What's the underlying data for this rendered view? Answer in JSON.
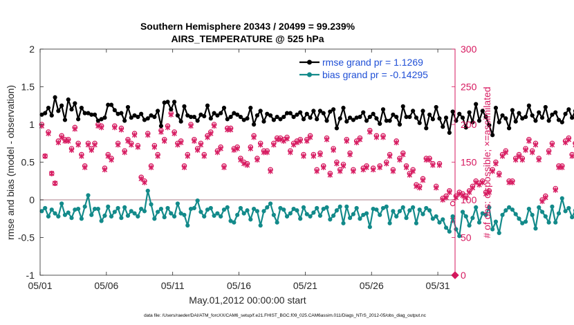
{
  "chart_data": {
    "type": "line",
    "title": "Southern Hemisphere 20343 / 20499 = 99.239%",
    "subtitle": "AIRS_TEMPERATURE @ 525 hPa",
    "xlabel": "May.01,2012 00:00:00 start",
    "ylabel_left": "rmse and bias (model - observation)",
    "ylabel_right": "# of obs: o=possible; ×=assimilated",
    "footnote": "data file: /Users/raeder/DAI/ATM_forcXX/CAM6_setup/f.e21.FHIST_BGC.f09_025.CAM6assim.011/Diags_NTrS_2012-05/obs_diag_output.nc",
    "xlim": [
      0,
      31.3
    ],
    "x_ticks": [
      0,
      5,
      10,
      15,
      20,
      25,
      30
    ],
    "x_tick_labels": [
      "05/01",
      "05/06",
      "05/11",
      "05/16",
      "05/21",
      "05/26",
      "05/31"
    ],
    "ylim_left": [
      -1,
      2
    ],
    "y_ticks_left": [
      -1,
      -0.5,
      0,
      0.5,
      1,
      1.5,
      2
    ],
    "y_tick_labels_left": [
      "-1",
      "-0.5",
      "0",
      "0.5",
      "1",
      "1.5",
      "2"
    ],
    "ylim_right": [
      0,
      300
    ],
    "y_ticks_right": [
      0,
      50,
      100,
      150,
      200,
      250,
      300
    ],
    "y_tick_labels_right": [
      "0",
      "50",
      "100",
      "150",
      "200",
      "250",
      "300"
    ],
    "legend_position": "top-right",
    "colors": {
      "rmse": "#000000",
      "bias": "#138a8a",
      "obs": "#d6175e",
      "legend_text": "#1f4fd6",
      "right_axis": "#d6175e",
      "zero_line": "#c8a8b0"
    },
    "interval_days": 0.25,
    "series": [
      {
        "name": "rmse grand pr = 1.1269",
        "axis": "left",
        "values": [
          1.13,
          1.15,
          1.22,
          1.12,
          1.36,
          1.18,
          1.25,
          1.06,
          1.33,
          1.2,
          1.28,
          1.07,
          1.22,
          1.15,
          1.15,
          1.13,
          1.13,
          1.05,
          1.07,
          1.09,
          1.26,
          1.26,
          1.19,
          1.14,
          1.15,
          1.05,
          1.23,
          1.09,
          1.12,
          1.1,
          1.14,
          1.06,
          1.08,
          1.12,
          1.1,
          1.18,
          0.98,
          1.29,
          1.3,
          1.2,
          1.3,
          1.12,
          1.04,
          1.24,
          1.12,
          1.1,
          1.1,
          1.05,
          1.13,
          1.11,
          1.25,
          1.08,
          1.15,
          1.12,
          1.15,
          1.22,
          1.07,
          1.1,
          1.15,
          1.13,
          1.1,
          1.06,
          1.08,
          1.22,
          1.0,
          1.12,
          1.18,
          1.04,
          1.14,
          1.12,
          1.06,
          1.1,
          1.07,
          1.1,
          1.15,
          1.15,
          1.1,
          1.13,
          1.16,
          1.07,
          1.14,
          1.09,
          1.18,
          1.07,
          1.18,
          1.15,
          1.05,
          1.17,
          1.2,
          0.95,
          1.08,
          1.22,
          1.04,
          1.09,
          1.06,
          1.09,
          1.1,
          1.16,
          1.05,
          1.1,
          1.14,
          1.08,
          1.01,
          1.2,
          1.05,
          1.05,
          1.13,
          1.1,
          1.0,
          1.24,
          1.1,
          1.1,
          1.18,
          1.09,
          1.02,
          1.18,
          0.95,
          1.13,
          1.07,
          1.23,
          1.08,
          0.97,
          1.09,
          0.89,
          1.17,
          1.05,
          1.14,
          1.09,
          0.96,
          1.16,
          1.03,
          1.27,
          1.05,
          1.18,
          1.1,
          0.99,
          0.86,
          1.22,
          1.03,
          1.12,
          1.08,
          0.95,
          1.19,
          1.04,
          1.15,
          1.08,
          1.1,
          1.25,
          1.12,
          1.05,
          1.16,
          1.09,
          1.23,
          1.05,
          1.13,
          1.16,
          1.06,
          1.03,
          1.14,
          1.2,
          1.09,
          1.18,
          1.05,
          1.13,
          1.13,
          1.05,
          1.14,
          1.09,
          1.2,
          1.05,
          1.17,
          1.1,
          1.01,
          1.18,
          0.97,
          1.1,
          1.09,
          1.03,
          1.06,
          1.03,
          1.15,
          1.19,
          1.17,
          1.03
        ]
      },
      {
        "name": "bias grand pr = -0.14295",
        "axis": "left",
        "values": [
          -0.15,
          -0.11,
          -0.22,
          -0.13,
          -0.18,
          -0.22,
          -0.05,
          -0.2,
          -0.17,
          -0.24,
          -0.13,
          -0.12,
          -0.25,
          -0.09,
          0.06,
          -0.2,
          -0.12,
          -0.12,
          -0.28,
          -0.21,
          -0.09,
          -0.22,
          -0.16,
          -0.11,
          -0.24,
          -0.1,
          -0.21,
          -0.15,
          -0.18,
          -0.22,
          -0.12,
          -0.15,
          0.12,
          -0.06,
          -0.25,
          -0.16,
          -0.12,
          -0.23,
          -0.11,
          -0.18,
          -0.22,
          -0.05,
          -0.18,
          -0.2,
          -0.34,
          -0.12,
          -0.11,
          -0.01,
          -0.16,
          -0.22,
          -0.13,
          -0.11,
          -0.21,
          -0.18,
          -0.22,
          -0.13,
          -0.1,
          -0.28,
          -0.3,
          -0.2,
          -0.11,
          -0.18,
          -0.14,
          -0.26,
          -0.12,
          -0.15,
          -0.34,
          -0.15,
          -0.1,
          -0.05,
          -0.2,
          -0.3,
          -0.11,
          -0.13,
          -0.22,
          -0.18,
          -0.12,
          -0.14,
          -0.25,
          -0.1,
          -0.19,
          -0.22,
          -0.17,
          -0.11,
          -0.21,
          -0.12,
          -0.1,
          -0.26,
          -0.21,
          -0.14,
          -0.09,
          -0.31,
          -0.09,
          -0.24,
          -0.19,
          -0.11,
          -0.25,
          -0.2,
          -0.18,
          -0.36,
          -0.12,
          -0.13,
          -0.2,
          -0.11,
          -0.09,
          -0.31,
          -0.15,
          -0.22,
          -0.15,
          -0.1,
          -0.24,
          -0.14,
          -0.1,
          -0.31,
          -0.13,
          -0.19,
          -0.11,
          -0.14,
          -0.25,
          -0.22,
          -0.3,
          -0.26,
          -0.37,
          -0.42,
          -0.22,
          -0.39,
          -0.48,
          -0.16,
          -0.22,
          -0.34,
          -0.24,
          -0.1,
          -0.3,
          -0.18,
          -0.2,
          -0.1,
          -0.39,
          -0.29,
          -0.44,
          -0.2,
          -0.14,
          -0.1,
          -0.13,
          -0.19,
          -0.25,
          -0.31,
          -0.29,
          -0.12,
          -0.2,
          -0.38,
          -0.1,
          -0.16,
          -0.22,
          -0.3,
          -0.09,
          -0.3,
          -0.18,
          0.02,
          -0.15,
          -0.11,
          -0.23,
          -0.14,
          -0.27,
          -0.2,
          -0.17,
          -0.05,
          -0.18,
          -0.31,
          -0.27,
          -0.14,
          -0.26,
          -0.05,
          -0.22,
          -0.15,
          -0.26,
          -0.17,
          -0.1,
          -0.24,
          -0.33,
          -0.27,
          -0.1,
          -0.23,
          -0.18,
          -0.04,
          -0.11,
          -0.13,
          -0.26,
          -0.16,
          -0.4,
          -0.16,
          -0.25
        ]
      },
      {
        "name": "# of obs possible",
        "axis": "right",
        "values": [
          200,
          158,
          190,
          135,
          122,
          178,
          185,
          180,
          180,
          168,
          196,
          175,
          160,
          145,
          175,
          168,
          175,
          200,
          198,
          142,
          160,
          155,
          198,
          175,
          195,
          165,
          180,
          175,
          188,
          172,
          130,
          125,
          188,
          145,
          172,
          160,
          192,
          180,
          198,
          215,
          190,
          175,
          178,
          145,
          160,
          200,
          180,
          168,
          175,
          160,
          185,
          190,
          200,
          165,
          170,
          145,
          195,
          195,
          168,
          170,
          155,
          150,
          148,
          170,
          185,
          155,
          175,
          165,
          165,
          140,
          175,
          182,
          182,
          180,
          183,
          165,
          175,
          178,
          180,
          160,
          180,
          185,
          160,
          140,
          162,
          145,
          182,
          135,
          168,
          150,
          140,
          147,
          180,
          162,
          140,
          178,
          182,
          142,
          145,
          192,
          142,
          185,
          145,
          185,
          150,
          160,
          140,
          178,
          155,
          162,
          145,
          135,
          140,
          120,
          118,
          128,
          155,
          155,
          148,
          118,
          148,
          102,
          105,
          112,
          95,
          105,
          110,
          108,
          105,
          112,
          118,
          125,
          122,
          125,
          110,
          112,
          140,
          150,
          135,
          160,
          165,
          125,
          125,
          155,
          160,
          155,
          168,
          180,
          165,
          175,
          155,
          100,
          105,
          165,
          175,
          115,
          145,
          145,
          178,
          182,
          160,
          175,
          175,
          185,
          175,
          140,
          160,
          195,
          172,
          195,
          182,
          195,
          195,
          178,
          180,
          195,
          180,
          202,
          210,
          170,
          175,
          170,
          182,
          180,
          160,
          185,
          175,
          170,
          195,
          140,
          185,
          162,
          158
        ]
      },
      {
        "name": "# of obs assimilated",
        "axis": "right",
        "values": [
          198,
          158,
          188,
          135,
          122,
          176,
          183,
          178,
          178,
          166,
          194,
          173,
          158,
          143,
          173,
          166,
          173,
          198,
          196,
          140,
          158,
          153,
          196,
          173,
          193,
          163,
          178,
          173,
          186,
          170,
          128,
          123,
          186,
          143,
          170,
          158,
          190,
          178,
          196,
          213,
          188,
          173,
          176,
          143,
          158,
          198,
          178,
          166,
          173,
          158,
          183,
          188,
          198,
          163,
          168,
          143,
          193,
          193,
          166,
          168,
          153,
          148,
          146,
          168,
          183,
          153,
          173,
          163,
          163,
          138,
          173,
          180,
          180,
          178,
          181,
          163,
          173,
          176,
          178,
          158,
          178,
          183,
          158,
          138,
          160,
          143,
          180,
          133,
          166,
          148,
          138,
          145,
          178,
          160,
          138,
          176,
          180,
          140,
          143,
          190,
          140,
          183,
          143,
          183,
          148,
          158,
          138,
          176,
          153,
          160,
          143,
          133,
          138,
          118,
          116,
          126,
          153,
          153,
          146,
          116,
          146,
          100,
          103,
          110,
          73,
          103,
          108,
          106,
          103,
          110,
          116,
          123,
          120,
          123,
          108,
          110,
          138,
          148,
          133,
          158,
          163,
          123,
          123,
          153,
          158,
          153,
          166,
          178,
          163,
          173,
          153,
          98,
          103,
          163,
          173,
          113,
          143,
          143,
          176,
          180,
          158,
          173,
          173,
          183,
          173,
          138,
          158,
          193,
          170,
          193,
          180,
          193,
          193,
          176,
          178,
          193,
          178,
          200,
          208,
          168,
          173,
          168,
          180,
          178,
          158,
          183,
          173,
          168,
          193,
          138,
          183,
          160,
          156
        ]
      }
    ]
  }
}
